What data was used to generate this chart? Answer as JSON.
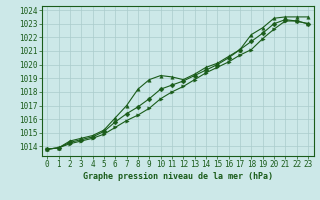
{
  "bg_color": "#cce8e8",
  "grid_color": "#aacccc",
  "line_color": "#1a5c1a",
  "title": "Graphe pression niveau de la mer (hPa)",
  "xlim": [
    -0.5,
    23.5
  ],
  "ylim": [
    1013.3,
    1024.3
  ],
  "yticks": [
    1014,
    1015,
    1016,
    1017,
    1018,
    1019,
    1020,
    1021,
    1022,
    1023,
    1024
  ],
  "xticks": [
    0,
    1,
    2,
    3,
    4,
    5,
    6,
    7,
    8,
    9,
    10,
    11,
    12,
    13,
    14,
    15,
    16,
    17,
    18,
    19,
    20,
    21,
    22,
    23
  ],
  "series": [
    {
      "name": "line1_straight",
      "x": [
        0,
        1,
        2,
        3,
        4,
        5,
        6,
        7,
        8,
        9,
        10,
        11,
        12,
        13,
        14,
        15,
        16,
        17,
        18,
        19,
        20,
        21,
        22,
        23
      ],
      "y": [
        1013.8,
        1013.9,
        1014.3,
        1014.5,
        1014.7,
        1015.1,
        1015.8,
        1016.4,
        1016.9,
        1017.5,
        1018.2,
        1018.5,
        1018.8,
        1019.2,
        1019.6,
        1020.0,
        1020.5,
        1021.1,
        1021.7,
        1022.3,
        1023.0,
        1023.3,
        1023.2,
        1023.0
      ],
      "marker": "D",
      "markersize": 2.5,
      "lw": 0.8
    },
    {
      "name": "line2_upper",
      "x": [
        0,
        1,
        2,
        3,
        4,
        5,
        6,
        7,
        8,
        9,
        10,
        11,
        12,
        13,
        14,
        15,
        16,
        17,
        18,
        19,
        20,
        21,
        22,
        23
      ],
      "y": [
        1013.8,
        1013.9,
        1014.4,
        1014.6,
        1014.8,
        1015.2,
        1016.1,
        1017.0,
        1018.2,
        1018.9,
        1019.2,
        1019.1,
        1018.9,
        1019.3,
        1019.8,
        1020.1,
        1020.6,
        1021.1,
        1022.2,
        1022.7,
        1023.4,
        1023.5,
        1023.5,
        1023.5
      ],
      "marker": "^",
      "markersize": 2.5,
      "lw": 0.8
    },
    {
      "name": "line3_lower",
      "x": [
        0,
        1,
        2,
        3,
        4,
        5,
        6,
        7,
        8,
        9,
        10,
        11,
        12,
        13,
        14,
        15,
        16,
        17,
        18,
        19,
        20,
        21,
        22,
        23
      ],
      "y": [
        1013.8,
        1013.9,
        1014.2,
        1014.4,
        1014.6,
        1014.9,
        1015.4,
        1015.9,
        1016.3,
        1016.8,
        1017.5,
        1018.0,
        1018.4,
        1018.9,
        1019.4,
        1019.8,
        1020.2,
        1020.7,
        1021.1,
        1021.9,
        1022.6,
        1023.2,
        1023.2,
        1023.0
      ],
      "marker": ">",
      "markersize": 2.5,
      "lw": 0.8
    }
  ],
  "tick_fontsize": 5.5,
  "xlabel_fontsize": 6,
  "spine_lw": 0.8
}
